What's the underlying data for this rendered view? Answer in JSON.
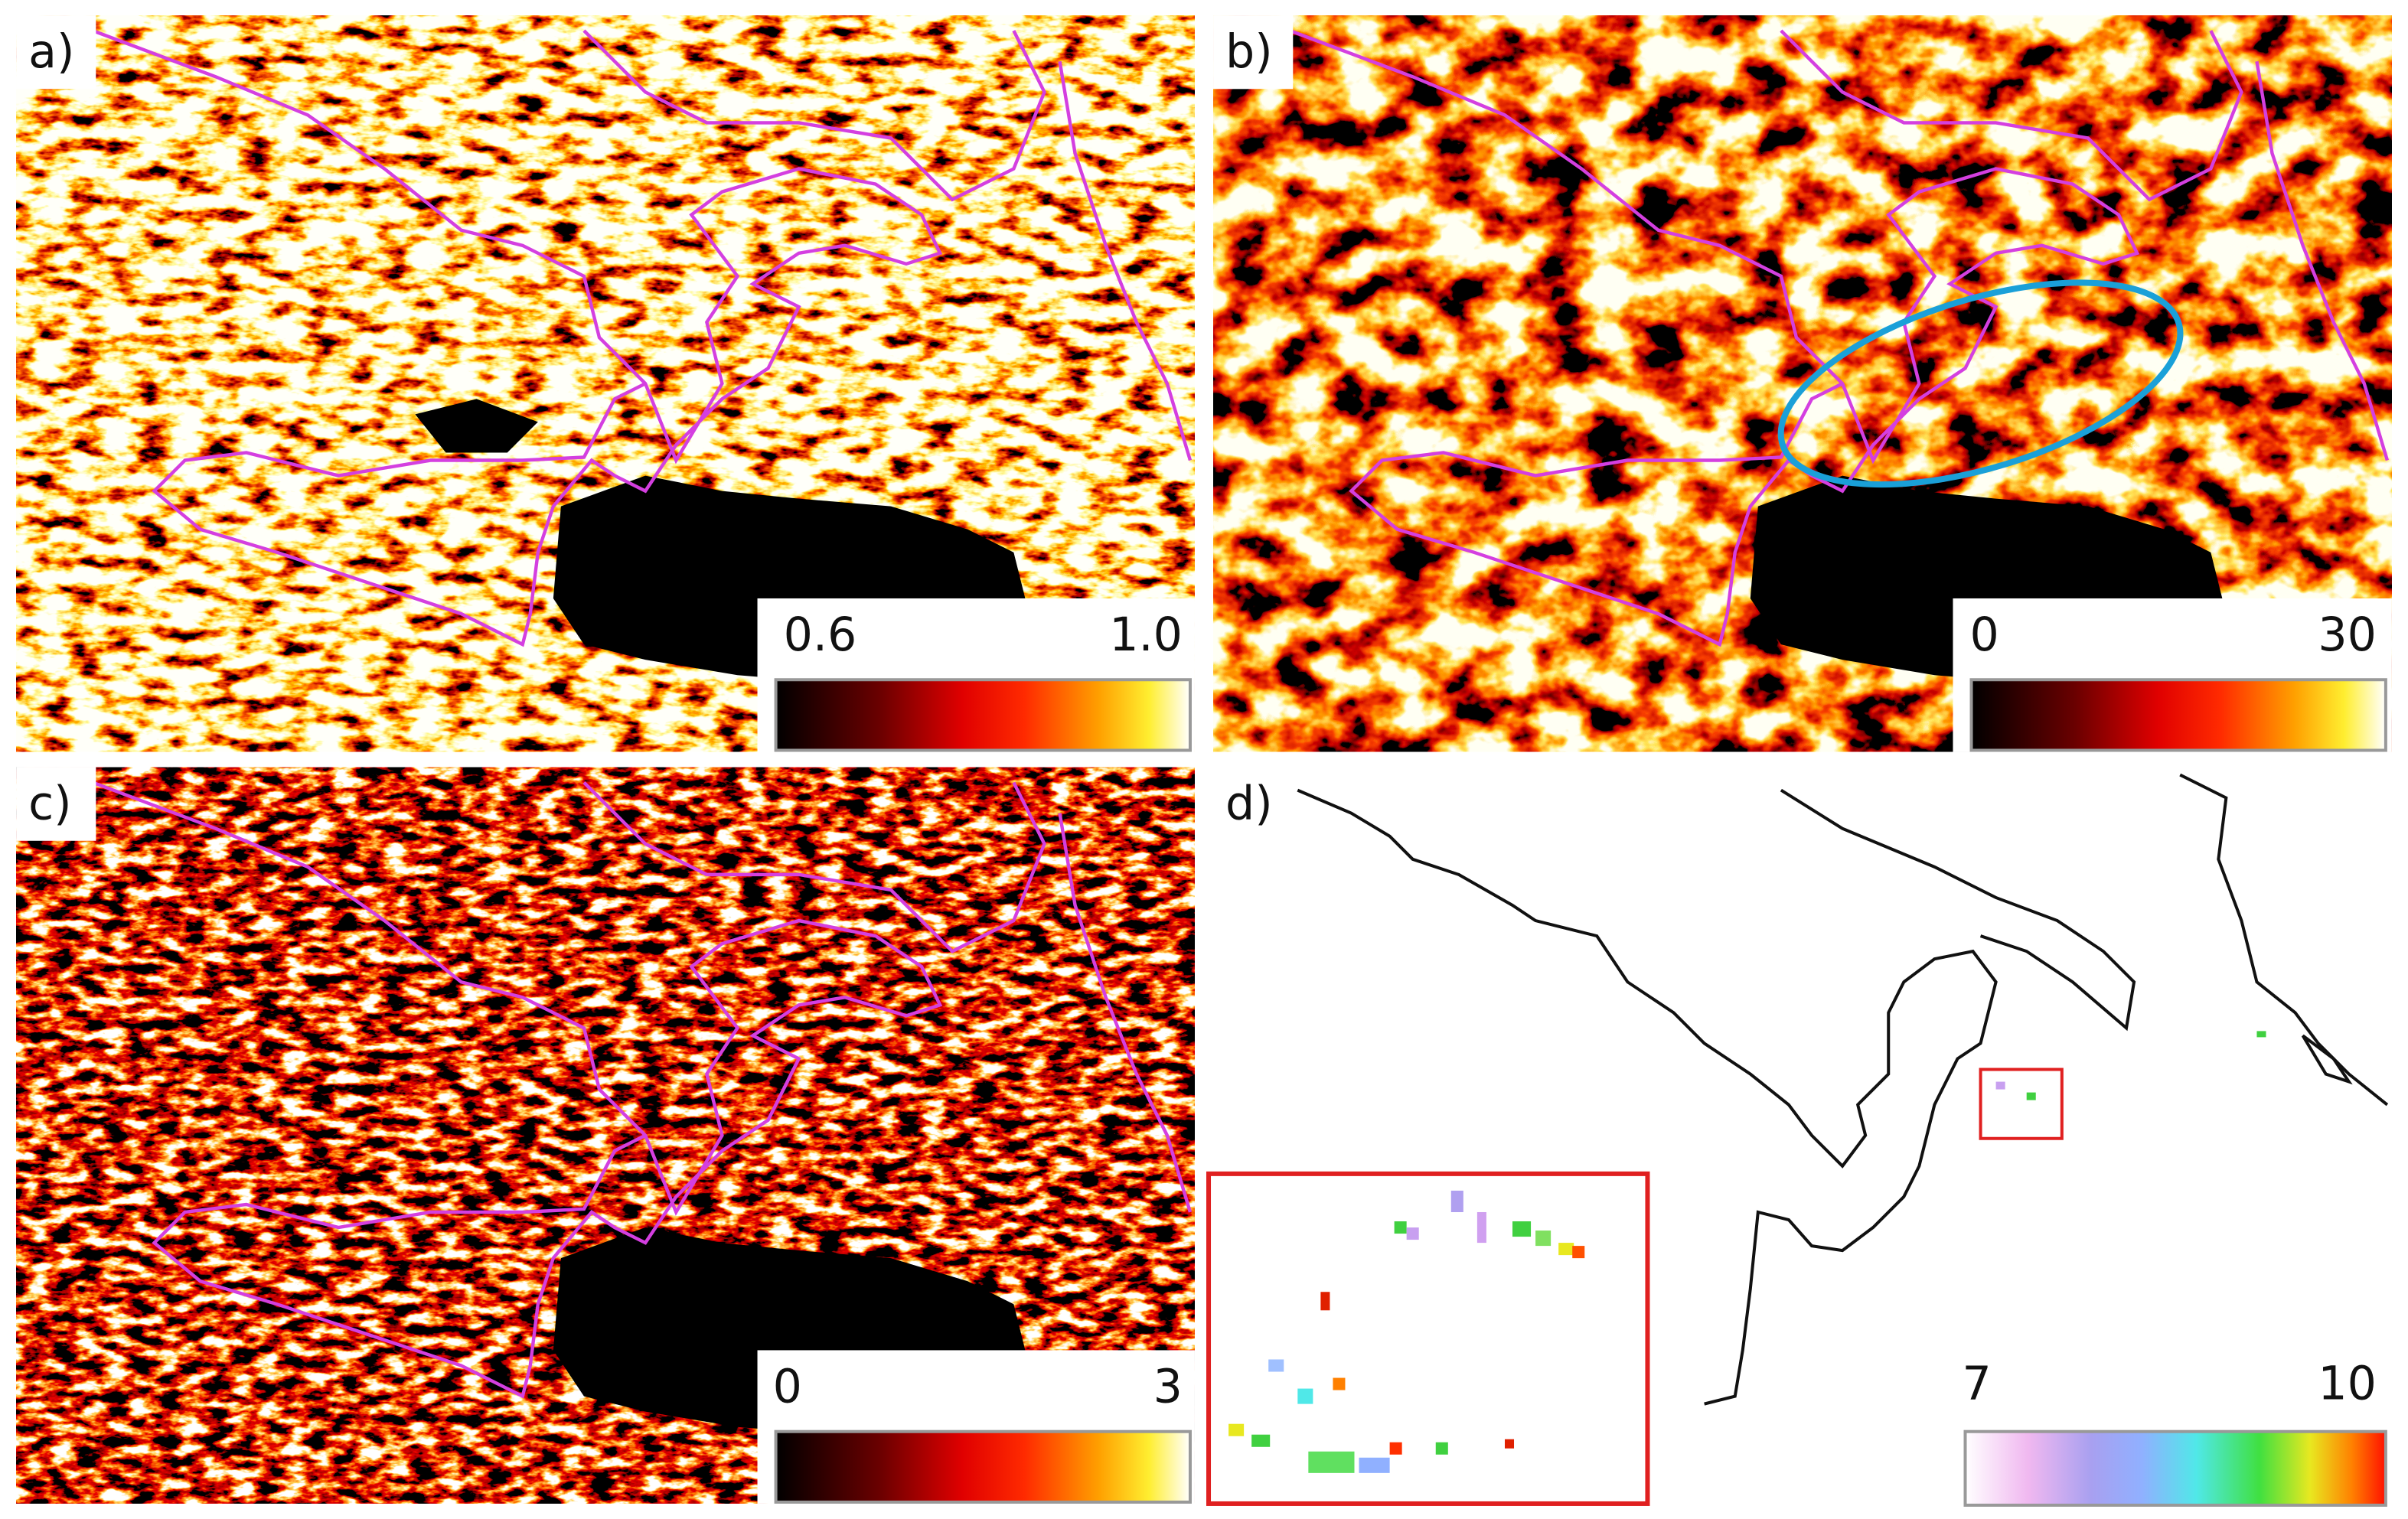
{
  "panels": [
    {
      "label": "a)",
      "colorbar": {
        "min": "0.6",
        "max": "1.0"
      }
    },
    {
      "label": "b)",
      "colorbar": {
        "min": "0",
        "max": "30"
      }
    },
    {
      "label": "c)",
      "colorbar": {
        "min": "0",
        "max": "3"
      }
    },
    {
      "label": "d)",
      "colorbar": {
        "min": "7",
        "max": "10"
      }
    }
  ]
}
